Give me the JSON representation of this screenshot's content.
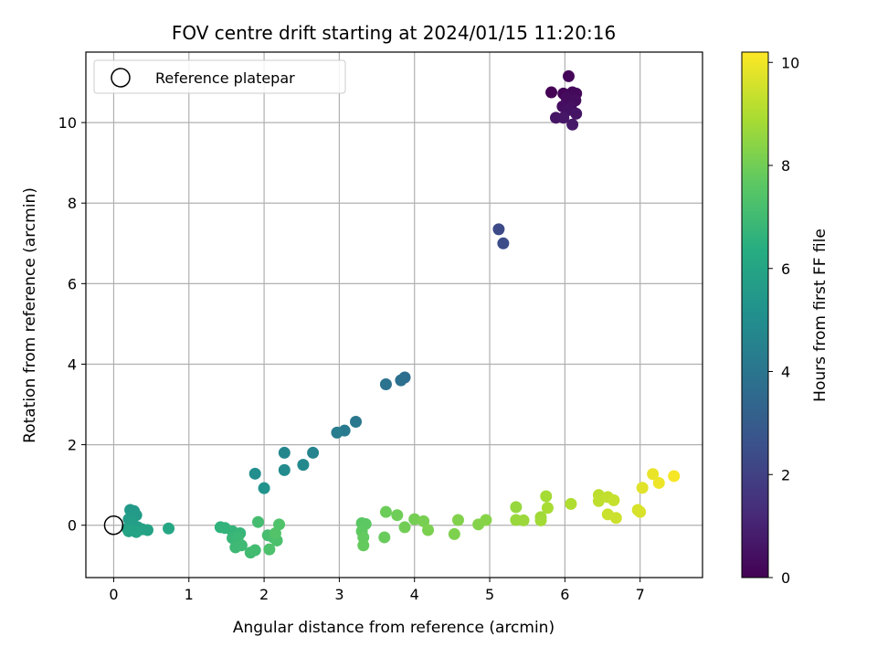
{
  "chart_data": {
    "type": "scatter",
    "title": "FOV centre drift starting at 2024/01/15 11:20:16",
    "xlabel": "Angular distance from reference (arcmin)",
    "ylabel": "Rotation from reference (arcmin)",
    "xlim": [
      -0.37,
      7.83
    ],
    "ylim": [
      -1.3,
      11.75
    ],
    "xticks": [
      0,
      1,
      2,
      3,
      4,
      5,
      6,
      7
    ],
    "yticks": [
      0,
      2,
      4,
      6,
      8,
      10
    ],
    "grid": true,
    "legend": {
      "placement": "top-left",
      "entries": [
        "Reference platepar"
      ]
    },
    "colorbar": {
      "label": "Hours from first FF file",
      "range": [
        0,
        10.2
      ],
      "ticks": [
        0,
        2,
        4,
        6,
        8,
        10
      ],
      "colormap": "viridis"
    },
    "reference_point": {
      "x": 0,
      "y": 0
    },
    "series": [
      {
        "points": [
          {
            "x": 5.82,
            "y": 10.75,
            "h": 0.05
          },
          {
            "x": 5.98,
            "y": 10.72,
            "h": 0.1
          },
          {
            "x": 6.05,
            "y": 11.15,
            "h": 0.15
          },
          {
            "x": 6.1,
            "y": 10.75,
            "h": 0.2
          },
          {
            "x": 6.15,
            "y": 10.72,
            "h": 0.25
          },
          {
            "x": 6.02,
            "y": 10.62,
            "h": 0.3
          },
          {
            "x": 6.14,
            "y": 10.55,
            "h": 0.35
          },
          {
            "x": 5.97,
            "y": 10.4,
            "h": 0.4
          },
          {
            "x": 6.08,
            "y": 10.38,
            "h": 0.45
          },
          {
            "x": 6.03,
            "y": 10.3,
            "h": 0.5
          },
          {
            "x": 6.15,
            "y": 10.22,
            "h": 0.55
          },
          {
            "x": 5.88,
            "y": 10.12,
            "h": 0.6
          },
          {
            "x": 5.98,
            "y": 10.12,
            "h": 0.65
          },
          {
            "x": 6.1,
            "y": 9.95,
            "h": 0.7
          },
          {
            "x": 5.12,
            "y": 7.35,
            "h": 2.3
          },
          {
            "x": 5.18,
            "y": 7.0,
            "h": 2.4
          },
          {
            "x": 3.87,
            "y": 3.67,
            "h": 3.7
          },
          {
            "x": 3.82,
            "y": 3.6,
            "h": 3.8
          },
          {
            "x": 3.62,
            "y": 3.5,
            "h": 3.9
          },
          {
            "x": 3.22,
            "y": 2.57,
            "h": 4.1
          },
          {
            "x": 3.07,
            "y": 2.35,
            "h": 4.2
          },
          {
            "x": 2.97,
            "y": 2.3,
            "h": 4.3
          },
          {
            "x": 2.65,
            "y": 1.8,
            "h": 4.6
          },
          {
            "x": 2.27,
            "y": 1.8,
            "h": 4.7
          },
          {
            "x": 2.52,
            "y": 1.5,
            "h": 4.8
          },
          {
            "x": 2.27,
            "y": 1.37,
            "h": 4.9
          },
          {
            "x": 1.88,
            "y": 1.28,
            "h": 5.0
          },
          {
            "x": 2.0,
            "y": 0.92,
            "h": 5.2
          },
          {
            "x": 0.27,
            "y": 0.35,
            "h": 5.5
          },
          {
            "x": 0.22,
            "y": 0.38,
            "h": 5.55
          },
          {
            "x": 0.3,
            "y": 0.25,
            "h": 5.6
          },
          {
            "x": 0.2,
            "y": 0.15,
            "h": 5.65
          },
          {
            "x": 0.25,
            "y": 0.05,
            "h": 5.7
          },
          {
            "x": 0.32,
            "y": -0.05,
            "h": 5.75
          },
          {
            "x": 0.18,
            "y": -0.08,
            "h": 5.8
          },
          {
            "x": 0.38,
            "y": -0.1,
            "h": 5.85
          },
          {
            "x": 0.45,
            "y": -0.12,
            "h": 5.9
          },
          {
            "x": 0.2,
            "y": -0.15,
            "h": 5.95
          },
          {
            "x": 0.3,
            "y": -0.17,
            "h": 6.0
          },
          {
            "x": 0.73,
            "y": -0.08,
            "h": 6.1
          },
          {
            "x": 1.42,
            "y": -0.05,
            "h": 6.6
          },
          {
            "x": 1.48,
            "y": -0.07,
            "h": 6.65
          },
          {
            "x": 1.58,
            "y": -0.15,
            "h": 6.7
          },
          {
            "x": 1.68,
            "y": -0.2,
            "h": 6.75
          },
          {
            "x": 1.58,
            "y": -0.32,
            "h": 6.8
          },
          {
            "x": 1.65,
            "y": -0.3,
            "h": 6.85
          },
          {
            "x": 1.62,
            "y": -0.55,
            "h": 6.9
          },
          {
            "x": 1.7,
            "y": -0.5,
            "h": 6.95
          },
          {
            "x": 1.82,
            "y": -0.68,
            "h": 7.0
          },
          {
            "x": 1.88,
            "y": -0.62,
            "h": 7.05
          },
          {
            "x": 1.92,
            "y": 0.08,
            "h": 7.1
          },
          {
            "x": 2.05,
            "y": -0.25,
            "h": 7.15
          },
          {
            "x": 2.12,
            "y": -0.3,
            "h": 7.2
          },
          {
            "x": 2.17,
            "y": -0.38,
            "h": 7.25
          },
          {
            "x": 2.07,
            "y": -0.6,
            "h": 7.3
          },
          {
            "x": 2.2,
            "y": 0.02,
            "h": 7.35
          },
          {
            "x": 2.15,
            "y": -0.2,
            "h": 7.4
          },
          {
            "x": 3.3,
            "y": 0.05,
            "h": 7.6
          },
          {
            "x": 3.35,
            "y": 0.03,
            "h": 7.65
          },
          {
            "x": 3.3,
            "y": -0.15,
            "h": 7.7
          },
          {
            "x": 3.32,
            "y": -0.3,
            "h": 7.75
          },
          {
            "x": 3.32,
            "y": -0.5,
            "h": 7.8
          },
          {
            "x": 3.6,
            "y": -0.3,
            "h": 7.85
          },
          {
            "x": 3.62,
            "y": 0.33,
            "h": 7.9
          },
          {
            "x": 3.77,
            "y": 0.25,
            "h": 7.95
          },
          {
            "x": 3.87,
            "y": -0.05,
            "h": 8.0
          },
          {
            "x": 4.0,
            "y": 0.15,
            "h": 8.05
          },
          {
            "x": 4.12,
            "y": 0.1,
            "h": 8.1
          },
          {
            "x": 4.18,
            "y": -0.12,
            "h": 8.15
          },
          {
            "x": 4.53,
            "y": -0.22,
            "h": 8.2
          },
          {
            "x": 4.58,
            "y": 0.13,
            "h": 8.25
          },
          {
            "x": 4.85,
            "y": 0.02,
            "h": 8.3
          },
          {
            "x": 4.95,
            "y": 0.13,
            "h": 8.35
          },
          {
            "x": 5.35,
            "y": 0.45,
            "h": 8.6
          },
          {
            "x": 5.35,
            "y": 0.13,
            "h": 8.65
          },
          {
            "x": 5.45,
            "y": 0.12,
            "h": 8.7
          },
          {
            "x": 5.68,
            "y": 0.2,
            "h": 8.75
          },
          {
            "x": 5.68,
            "y": 0.12,
            "h": 8.8
          },
          {
            "x": 5.75,
            "y": 0.72,
            "h": 8.85
          },
          {
            "x": 5.77,
            "y": 0.43,
            "h": 8.9
          },
          {
            "x": 6.08,
            "y": 0.53,
            "h": 9.0
          },
          {
            "x": 6.45,
            "y": 0.75,
            "h": 9.2
          },
          {
            "x": 6.45,
            "y": 0.6,
            "h": 9.25
          },
          {
            "x": 6.57,
            "y": 0.7,
            "h": 9.3
          },
          {
            "x": 6.65,
            "y": 0.62,
            "h": 9.35
          },
          {
            "x": 6.57,
            "y": 0.27,
            "h": 9.4
          },
          {
            "x": 6.68,
            "y": 0.18,
            "h": 9.45
          },
          {
            "x": 6.97,
            "y": 0.38,
            "h": 9.6
          },
          {
            "x": 7.0,
            "y": 0.33,
            "h": 9.65
          },
          {
            "x": 7.03,
            "y": 0.93,
            "h": 9.75
          },
          {
            "x": 7.17,
            "y": 1.27,
            "h": 9.9
          },
          {
            "x": 7.25,
            "y": 1.05,
            "h": 9.95
          },
          {
            "x": 7.45,
            "y": 1.22,
            "h": 10.1
          }
        ]
      }
    ]
  }
}
